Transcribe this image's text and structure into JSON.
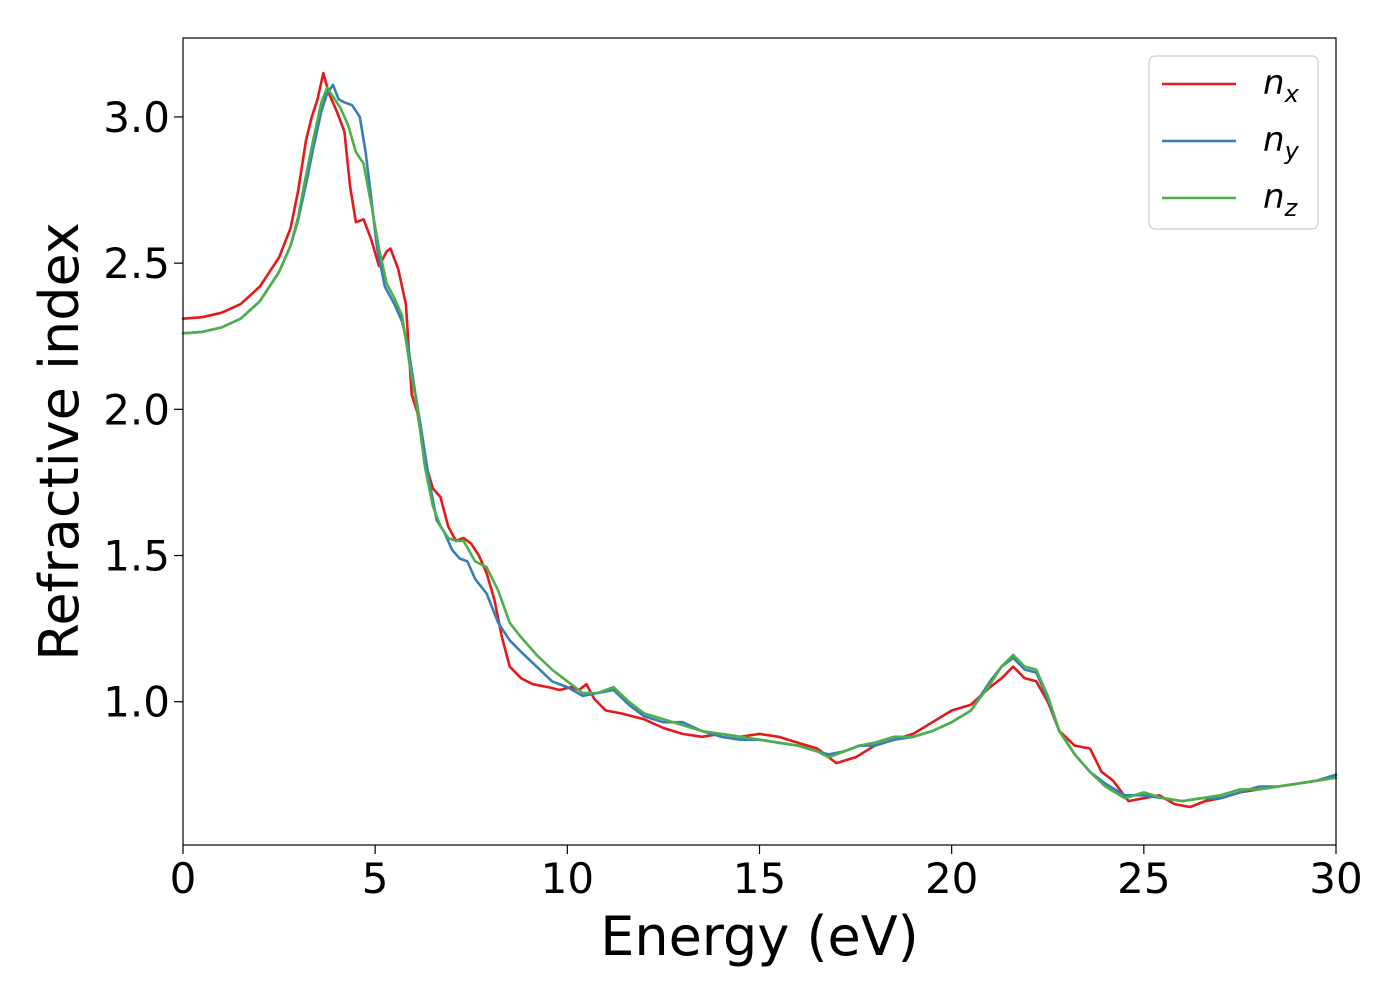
{
  "colors": {
    "n_x": "#e31a1c",
    "n_y": "#377eb8",
    "n_z": "#4daf4a"
  },
  "chart_data": {
    "type": "line",
    "xlabel": "Energy (eV)",
    "ylabel": "Refractive index",
    "xlim": [
      0,
      30
    ],
    "ylim": [
      0.51,
      3.27
    ],
    "xticks": [
      0,
      5,
      10,
      15,
      20,
      25,
      30
    ],
    "xtick_labels": [
      "0",
      "5",
      "10",
      "15",
      "20",
      "25",
      "30"
    ],
    "yticks": [
      1.0,
      1.5,
      2.0,
      2.5,
      3.0
    ],
    "ytick_labels": [
      "1.0",
      "1.5",
      "2.0",
      "2.5",
      "3.0"
    ],
    "grid": false,
    "legend_position": "top-right",
    "series": [
      {
        "name": "n_x",
        "base": "n",
        "sub": "x",
        "points": [
          [
            0,
            2.31
          ],
          [
            0.5,
            2.315
          ],
          [
            1,
            2.33
          ],
          [
            1.5,
            2.36
          ],
          [
            2,
            2.42
          ],
          [
            2.5,
            2.52
          ],
          [
            2.8,
            2.62
          ],
          [
            3.0,
            2.75
          ],
          [
            3.2,
            2.92
          ],
          [
            3.35,
            3.0
          ],
          [
            3.5,
            3.06
          ],
          [
            3.65,
            3.15
          ],
          [
            3.8,
            3.08
          ],
          [
            4.0,
            3.02
          ],
          [
            4.2,
            2.95
          ],
          [
            4.35,
            2.76
          ],
          [
            4.5,
            2.64
          ],
          [
            4.7,
            2.65
          ],
          [
            4.9,
            2.58
          ],
          [
            5.1,
            2.49
          ],
          [
            5.3,
            2.54
          ],
          [
            5.4,
            2.55
          ],
          [
            5.6,
            2.48
          ],
          [
            5.8,
            2.36
          ],
          [
            5.95,
            2.05
          ],
          [
            6.1,
            1.99
          ],
          [
            6.3,
            1.82
          ],
          [
            6.5,
            1.73
          ],
          [
            6.7,
            1.7
          ],
          [
            6.9,
            1.6
          ],
          [
            7.1,
            1.55
          ],
          [
            7.3,
            1.56
          ],
          [
            7.5,
            1.54
          ],
          [
            7.7,
            1.5
          ],
          [
            7.9,
            1.44
          ],
          [
            8.1,
            1.35
          ],
          [
            8.3,
            1.22
          ],
          [
            8.5,
            1.12
          ],
          [
            8.8,
            1.08
          ],
          [
            9.1,
            1.06
          ],
          [
            9.5,
            1.05
          ],
          [
            9.8,
            1.04
          ],
          [
            10.1,
            1.05
          ],
          [
            10.3,
            1.04
          ],
          [
            10.5,
            1.06
          ],
          [
            10.7,
            1.01
          ],
          [
            11.0,
            0.97
          ],
          [
            11.4,
            0.96
          ],
          [
            12.0,
            0.94
          ],
          [
            12.5,
            0.91
          ],
          [
            13.0,
            0.89
          ],
          [
            13.5,
            0.88
          ],
          [
            14.0,
            0.89
          ],
          [
            14.5,
            0.88
          ],
          [
            15.0,
            0.89
          ],
          [
            15.5,
            0.88
          ],
          [
            16.0,
            0.86
          ],
          [
            16.5,
            0.84
          ],
          [
            17.0,
            0.79
          ],
          [
            17.5,
            0.81
          ],
          [
            18.0,
            0.85
          ],
          [
            18.5,
            0.87
          ],
          [
            19.0,
            0.89
          ],
          [
            19.5,
            0.93
          ],
          [
            20.0,
            0.97
          ],
          [
            20.5,
            0.99
          ],
          [
            21.0,
            1.05
          ],
          [
            21.3,
            1.08
          ],
          [
            21.6,
            1.12
          ],
          [
            21.9,
            1.08
          ],
          [
            22.2,
            1.07
          ],
          [
            22.5,
            1.0
          ],
          [
            22.8,
            0.9
          ],
          [
            23.2,
            0.85
          ],
          [
            23.6,
            0.84
          ],
          [
            23.9,
            0.76
          ],
          [
            24.2,
            0.73
          ],
          [
            24.6,
            0.66
          ],
          [
            25.0,
            0.67
          ],
          [
            25.4,
            0.68
          ],
          [
            25.8,
            0.65
          ],
          [
            26.2,
            0.64
          ],
          [
            26.6,
            0.66
          ],
          [
            27.0,
            0.67
          ],
          [
            27.5,
            0.69
          ],
          [
            28.0,
            0.7
          ],
          [
            28.5,
            0.71
          ],
          [
            29.0,
            0.72
          ],
          [
            29.5,
            0.73
          ],
          [
            30.0,
            0.75
          ]
        ]
      },
      {
        "name": "n_y",
        "base": "n",
        "sub": "y",
        "points": [
          [
            0,
            2.26
          ],
          [
            0.5,
            2.265
          ],
          [
            1,
            2.28
          ],
          [
            1.5,
            2.31
          ],
          [
            2,
            2.37
          ],
          [
            2.5,
            2.47
          ],
          [
            2.8,
            2.56
          ],
          [
            3.0,
            2.65
          ],
          [
            3.2,
            2.77
          ],
          [
            3.4,
            2.9
          ],
          [
            3.6,
            3.02
          ],
          [
            3.75,
            3.08
          ],
          [
            3.9,
            3.11
          ],
          [
            4.05,
            3.06
          ],
          [
            4.2,
            3.05
          ],
          [
            4.4,
            3.04
          ],
          [
            4.6,
            3.0
          ],
          [
            4.75,
            2.88
          ],
          [
            4.9,
            2.72
          ],
          [
            5.05,
            2.55
          ],
          [
            5.25,
            2.42
          ],
          [
            5.5,
            2.36
          ],
          [
            5.7,
            2.3
          ],
          [
            5.85,
            2.22
          ],
          [
            6.05,
            2.05
          ],
          [
            6.2,
            1.93
          ],
          [
            6.4,
            1.76
          ],
          [
            6.6,
            1.62
          ],
          [
            6.8,
            1.58
          ],
          [
            7.0,
            1.52
          ],
          [
            7.2,
            1.49
          ],
          [
            7.4,
            1.48
          ],
          [
            7.6,
            1.42
          ],
          [
            7.9,
            1.37
          ],
          [
            8.2,
            1.27
          ],
          [
            8.5,
            1.21
          ],
          [
            8.8,
            1.17
          ],
          [
            9.2,
            1.12
          ],
          [
            9.6,
            1.07
          ],
          [
            10.0,
            1.05
          ],
          [
            10.4,
            1.02
          ],
          [
            10.8,
            1.03
          ],
          [
            11.2,
            1.04
          ],
          [
            11.6,
            0.99
          ],
          [
            12.0,
            0.95
          ],
          [
            12.5,
            0.93
          ],
          [
            13.0,
            0.93
          ],
          [
            13.5,
            0.9
          ],
          [
            14.0,
            0.88
          ],
          [
            14.5,
            0.87
          ],
          [
            15.0,
            0.87
          ],
          [
            15.5,
            0.86
          ],
          [
            16.0,
            0.85
          ],
          [
            16.5,
            0.83
          ],
          [
            16.8,
            0.82
          ],
          [
            17.2,
            0.83
          ],
          [
            17.6,
            0.85
          ],
          [
            18.0,
            0.85
          ],
          [
            18.5,
            0.87
          ],
          [
            19.0,
            0.88
          ],
          [
            19.5,
            0.9
          ],
          [
            20.0,
            0.93
          ],
          [
            20.5,
            0.97
          ],
          [
            21.0,
            1.07
          ],
          [
            21.3,
            1.12
          ],
          [
            21.6,
            1.15
          ],
          [
            21.9,
            1.11
          ],
          [
            22.2,
            1.1
          ],
          [
            22.5,
            1.01
          ],
          [
            22.8,
            0.9
          ],
          [
            23.2,
            0.82
          ],
          [
            23.6,
            0.76
          ],
          [
            24.0,
            0.72
          ],
          [
            24.5,
            0.68
          ],
          [
            25.0,
            0.68
          ],
          [
            25.5,
            0.67
          ],
          [
            26.0,
            0.66
          ],
          [
            26.5,
            0.67
          ],
          [
            27.0,
            0.67
          ],
          [
            27.5,
            0.69
          ],
          [
            28.0,
            0.71
          ],
          [
            28.5,
            0.71
          ],
          [
            29.0,
            0.72
          ],
          [
            29.5,
            0.73
          ],
          [
            30.0,
            0.75
          ]
        ]
      },
      {
        "name": "n_z",
        "base": "n",
        "sub": "z",
        "points": [
          [
            0,
            2.26
          ],
          [
            0.5,
            2.265
          ],
          [
            1,
            2.28
          ],
          [
            1.5,
            2.31
          ],
          [
            2,
            2.37
          ],
          [
            2.5,
            2.47
          ],
          [
            2.8,
            2.56
          ],
          [
            3.0,
            2.66
          ],
          [
            3.2,
            2.8
          ],
          [
            3.4,
            2.93
          ],
          [
            3.6,
            3.05
          ],
          [
            3.75,
            3.1
          ],
          [
            3.9,
            3.07
          ],
          [
            4.1,
            3.03
          ],
          [
            4.3,
            2.97
          ],
          [
            4.5,
            2.88
          ],
          [
            4.7,
            2.84
          ],
          [
            4.9,
            2.7
          ],
          [
            5.1,
            2.55
          ],
          [
            5.3,
            2.43
          ],
          [
            5.5,
            2.38
          ],
          [
            5.7,
            2.32
          ],
          [
            5.9,
            2.15
          ],
          [
            6.1,
            2.0
          ],
          [
            6.3,
            1.8
          ],
          [
            6.5,
            1.67
          ],
          [
            6.7,
            1.6
          ],
          [
            6.9,
            1.56
          ],
          [
            7.1,
            1.55
          ],
          [
            7.3,
            1.55
          ],
          [
            7.6,
            1.48
          ],
          [
            7.9,
            1.46
          ],
          [
            8.2,
            1.38
          ],
          [
            8.5,
            1.27
          ],
          [
            8.8,
            1.22
          ],
          [
            9.2,
            1.16
          ],
          [
            9.6,
            1.11
          ],
          [
            10.0,
            1.07
          ],
          [
            10.4,
            1.03
          ],
          [
            10.8,
            1.03
          ],
          [
            11.2,
            1.05
          ],
          [
            11.6,
            1.0
          ],
          [
            12.0,
            0.96
          ],
          [
            12.5,
            0.94
          ],
          [
            13.0,
            0.92
          ],
          [
            13.5,
            0.9
          ],
          [
            14.0,
            0.89
          ],
          [
            14.5,
            0.88
          ],
          [
            15.0,
            0.87
          ],
          [
            15.5,
            0.86
          ],
          [
            16.0,
            0.85
          ],
          [
            16.5,
            0.83
          ],
          [
            16.8,
            0.81
          ],
          [
            17.2,
            0.83
          ],
          [
            17.6,
            0.85
          ],
          [
            18.0,
            0.86
          ],
          [
            18.5,
            0.88
          ],
          [
            19.0,
            0.88
          ],
          [
            19.5,
            0.9
          ],
          [
            20.0,
            0.93
          ],
          [
            20.5,
            0.97
          ],
          [
            21.0,
            1.06
          ],
          [
            21.3,
            1.12
          ],
          [
            21.6,
            1.16
          ],
          [
            21.9,
            1.12
          ],
          [
            22.2,
            1.11
          ],
          [
            22.5,
            1.02
          ],
          [
            22.8,
            0.9
          ],
          [
            23.2,
            0.82
          ],
          [
            23.6,
            0.76
          ],
          [
            24.0,
            0.71
          ],
          [
            24.5,
            0.67
          ],
          [
            25.0,
            0.69
          ],
          [
            25.5,
            0.67
          ],
          [
            26.0,
            0.66
          ],
          [
            26.5,
            0.67
          ],
          [
            27.0,
            0.68
          ],
          [
            27.5,
            0.7
          ],
          [
            28.0,
            0.7
          ],
          [
            28.5,
            0.71
          ],
          [
            29.0,
            0.72
          ],
          [
            29.5,
            0.73
          ],
          [
            30.0,
            0.74
          ]
        ]
      }
    ]
  }
}
